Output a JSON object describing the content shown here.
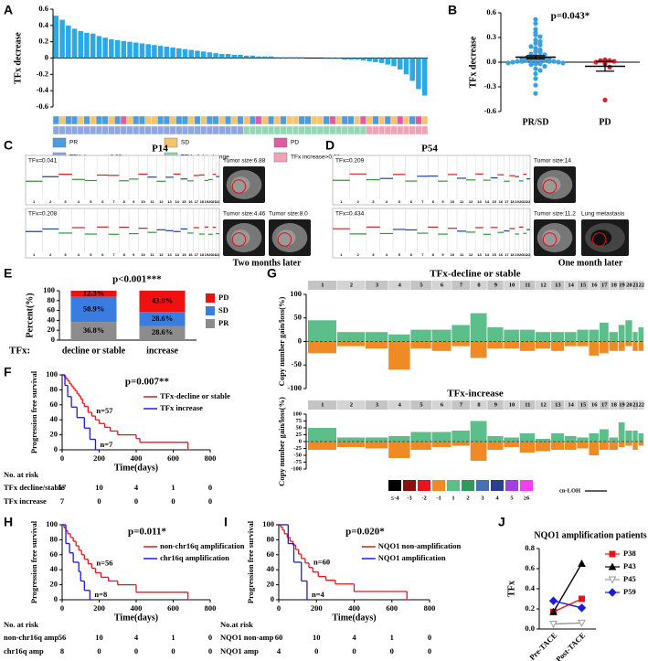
{
  "panel_labels": [
    "A",
    "B",
    "C",
    "D",
    "E",
    "F",
    "G",
    "H",
    "I",
    "J"
  ],
  "figure_panels": {
    "C": {
      "title": "P14",
      "tfx": [
        "TFx=0.041",
        "TFx=0.208"
      ],
      "tumor": [
        "Tumor size:6.88",
        "Tumor size:4.46",
        "Tumor size:8.0"
      ],
      "note": "Two months later"
    },
    "D": {
      "title": "P54",
      "tfx": [
        "TFx=0.209",
        "TFx=0.434"
      ],
      "tumor": [
        "Tumor size:14",
        "Tumor size:11.2"
      ],
      "lung": "Lung metastasis",
      "note": "One month later"
    }
  },
  "chart_data": [
    {
      "type": "waterfall",
      "ylabel": "TFx decrease",
      "ylim": [
        -0.6,
        0.6
      ],
      "yticks": [
        -0.6,
        -0.4,
        -0.2,
        0,
        0.2,
        0.4,
        0.6
      ],
      "color": "#29a9e6",
      "values": [
        0.52,
        0.47,
        0.4,
        0.36,
        0.33,
        0.31,
        0.3,
        0.27,
        0.25,
        0.23,
        0.22,
        0.21,
        0.2,
        0.19,
        0.18,
        0.17,
        0.16,
        0.15,
        0.14,
        0.13,
        0.12,
        0.11,
        0.1,
        0.09,
        0.08,
        0.07,
        0.06,
        0.05,
        0.05,
        0.04,
        0.04,
        0.03,
        0.03,
        0.02,
        0.02,
        0.02,
        0.01,
        0.01,
        0.01,
        0.01,
        0.01,
        0,
        0,
        0,
        -0.01,
        -0.01,
        -0.01,
        -0.02,
        -0.02,
        -0.02,
        -0.03,
        -0.04,
        -0.05,
        -0.06,
        -0.08,
        -0.1,
        -0.14,
        -0.2,
        -0.28,
        -0.38,
        -0.46
      ],
      "response": [
        "PR",
        "SD",
        "PR",
        "PR",
        "SD",
        "PR",
        "SD",
        "PR",
        "PR",
        "SD",
        "PR",
        "PD",
        "SD",
        "PR",
        "PR",
        "SD",
        "SD",
        "PR",
        "PR",
        "SD",
        "PR",
        "PR",
        "SD",
        "PR",
        "SD",
        "PR",
        "PR",
        "SD",
        "PR",
        "SD",
        "PR",
        "SD",
        "PR",
        "PD",
        "SD",
        "PR",
        "SD",
        "PR",
        "SD",
        "SD",
        "PR",
        "PR",
        "SD",
        "SD",
        "PR",
        "PD",
        "SD",
        "PR",
        "PR",
        "SD",
        "PD",
        "SD",
        "PR",
        "SD",
        "PR",
        "SD",
        "PD",
        "SD",
        "PR",
        "PD",
        "SD"
      ],
      "tfx_change": [
        "TFX decrease>0.03",
        "TFX decrease>0.03",
        "TFX decrease>0.03",
        "TFX decrease>0.03",
        "TFX decrease>0.03",
        "TFX decrease>0.03",
        "TFX decrease>0.03",
        "TFX decrease>0.03",
        "TFX decrease>0.03",
        "TFX decrease>0.03",
        "TFX decrease>0.03",
        "TFX decrease>0.03",
        "TFX decrease>0.03",
        "TFX decrease>0.03",
        "TFX decrease>0.03",
        "TFX decrease>0.03",
        "TFX decrease>0.03",
        "TFX decrease>0.03",
        "TFX decrease>0.03",
        "TFX decrease>0.03",
        "TFX decrease>0.03",
        "TFX decrease>0.03",
        "TFX decrease>0.03",
        "TFX decrease>0.03",
        "TFX decrease>0.03",
        "TFX decrease>0.03",
        "TFX decrease>0.03",
        "TFX decrease>0.03",
        "TFX decrease>0.03",
        "TFX decrease>0.03",
        "TFX decrease>0.03",
        "TFX slight-change",
        "TFX slight-change",
        "TFX slight-change",
        "TFX slight-change",
        "TFX slight-change",
        "TFX slight-change",
        "TFX slight-change",
        "TFX slight-change",
        "TFX slight-change",
        "TFX slight-change",
        "TFX slight-change",
        "TFX slight-change",
        "TFX slight-change",
        "TFX slight-change",
        "TFX slight-change",
        "TFX slight-change",
        "TFX slight-change",
        "TFX slight-change",
        "TFX slight-change",
        "TFX slight-change",
        "TFx increase>0.03",
        "TFx increase>0.03",
        "TFx increase>0.03",
        "TFx increase>0.03",
        "TFx increase>0.03",
        "TFx increase>0.03",
        "TFx increase>0.03",
        "TFx increase>0.03",
        "TFx increase>0.03",
        "TFx increase>0.03"
      ],
      "legend": [
        {
          "name": "PR",
          "color": "#4a9ee0"
        },
        {
          "name": "SD",
          "color": "#f6c46a"
        },
        {
          "name": "PD",
          "color": "#e25ca2"
        },
        {
          "name": "TFX decrease>0.03",
          "color": "#8fa6de"
        },
        {
          "name": "TFX slight-change",
          "color": "#94d7b3"
        },
        {
          "name": "TFx increase>0.03",
          "color": "#f2a2b6"
        }
      ]
    },
    {
      "type": "dot",
      "title": "p=0.043*",
      "ylabel": "TFx decrease",
      "ylim": [
        -0.6,
        0.6
      ],
      "yticks": [
        -0.6,
        -0.3,
        {
          "value": 0,
          "label": "0.0"
        },
        0.3,
        0.6
      ],
      "groups": [
        {
          "name": "PR/SD",
          "color": "#3aa0e0",
          "values": [
            0.52,
            0.47,
            0.4,
            0.36,
            0.33,
            0.31,
            0.27,
            0.25,
            0.23,
            0.21,
            0.19,
            0.17,
            0.15,
            0.13,
            0.12,
            0.1,
            0.09,
            0.08,
            0.07,
            0.06,
            0.05,
            0.05,
            0.04,
            0.04,
            0.03,
            0.03,
            0.02,
            0.02,
            0.02,
            0.01,
            0.01,
            0.01,
            0.01,
            0,
            0,
            -0.01,
            -0.01,
            -0.02,
            -0.02,
            -0.03,
            -0.05,
            -0.08,
            -0.1,
            -0.14,
            -0.2,
            -0.28,
            -0.38
          ],
          "mean": 0.06,
          "sem": 0.02
        },
        {
          "name": "PD",
          "color": "#e0202a",
          "values": [
            0.03,
            0.02,
            0.02,
            0.01,
            0,
            -0.02,
            -0.06,
            -0.46
          ],
          "mean": -0.05,
          "sem": 0.06
        }
      ]
    },
    {
      "type": "stacked_bar",
      "title": "p<0.001***",
      "ylabel": "Percent(%)",
      "xlabel": "TFx:",
      "categories": [
        "decline or stable",
        "increase"
      ],
      "ylim": [
        0,
        100
      ],
      "yticks": [
        0,
        20,
        40,
        60,
        80,
        100
      ],
      "series": [
        {
          "name": "PR",
          "color": "#8c8c8c",
          "values": [
            36.8,
            28.6
          ],
          "value_labels": [
            "36.8%",
            "28.6%"
          ]
        },
        {
          "name": "SD",
          "color": "#3a7de0",
          "values": [
            50.9,
            28.6
          ],
          "value_labels": [
            "50.9%",
            "28.6%"
          ]
        },
        {
          "name": "PD",
          "color": "#f01010",
          "values": [
            12.3,
            43.0
          ],
          "value_labels": [
            "12.3%",
            "43.0%"
          ]
        }
      ]
    },
    {
      "type": "km",
      "title": "p=0.007**",
      "ylabel": "Progression free survival",
      "xlabel": "Time(days)",
      "xlim": [
        0,
        800
      ],
      "xticks": [
        0,
        200,
        400,
        600,
        800
      ],
      "ylim": [
        0,
        100
      ],
      "yticks": [
        0,
        20,
        40,
        60,
        80,
        100
      ],
      "series": [
        {
          "name": "TFx-decline or stable",
          "color": "#e8141c",
          "label": "n=57",
          "x": [
            0,
            10,
            20,
            30,
            40,
            50,
            60,
            70,
            80,
            90,
            100,
            110,
            120,
            140,
            160,
            180,
            200,
            230,
            260,
            300,
            400,
            420,
            680
          ],
          "values": [
            100,
            98,
            95,
            92,
            88,
            85,
            82,
            79,
            75,
            72,
            68,
            62,
            58,
            50,
            45,
            40,
            35,
            30,
            25,
            20,
            15,
            10,
            0
          ]
        },
        {
          "name": "TFx increase",
          "color": "#1a1ae0",
          "label": "n=7",
          "x": [
            0,
            15,
            30,
            50,
            80,
            120,
            150,
            180
          ],
          "values": [
            100,
            86,
            71,
            57,
            43,
            29,
            14,
            0
          ]
        }
      ],
      "risk_table": {
        "title": "No. at risk",
        "rows": [
          {
            "name": "TFx decline/stable",
            "values": [
              57,
              10,
              4,
              1,
              0
            ]
          },
          {
            "name": "TFx increase",
            "values": [
              7,
              0,
              0,
              0,
              0
            ]
          }
        ]
      }
    },
    {
      "type": "cnv",
      "title": "TFx-decline or stable",
      "ylabel": "Copy number gain/loss(%)",
      "categories": [
        "1",
        "2",
        "3",
        "4",
        "5",
        "6",
        "7",
        "8",
        "9",
        "10",
        "11",
        "12",
        "13",
        "14",
        "15",
        "16",
        "17",
        "18",
        "19",
        "20",
        "21",
        "22"
      ],
      "ylim": [
        -100,
        100
      ],
      "yticks": [
        -100,
        -50,
        0,
        50,
        100
      ],
      "gain_color": "#5cbf8a",
      "loss_color": "#f08a24",
      "gain": [
        45,
        20,
        20,
        15,
        25,
        25,
        35,
        60,
        30,
        25,
        25,
        20,
        20,
        20,
        25,
        25,
        40,
        20,
        35,
        45,
        20,
        30
      ],
      "loss": [
        -25,
        -10,
        -15,
        -60,
        -15,
        -20,
        -10,
        -35,
        -15,
        -15,
        -20,
        -15,
        -20,
        -10,
        -10,
        -30,
        -25,
        -20,
        -20,
        -10,
        -20,
        -20
      ]
    },
    {
      "type": "cnv",
      "title": "TFx-increase",
      "ylabel": "Copy number gain/loss(%)",
      "categories": [
        "1",
        "2",
        "3",
        "4",
        "5",
        "6",
        "7",
        "8",
        "9",
        "10",
        "11",
        "12",
        "13",
        "14",
        "15",
        "16",
        "17",
        "18",
        "19",
        "20",
        "21",
        "22"
      ],
      "ylim": [
        -100,
        100
      ],
      "yticks": [
        -100,
        -75,
        -50,
        -25,
        0,
        25,
        50,
        75,
        100
      ],
      "gain_color": "#5cbf8a",
      "loss_color": "#f08a24",
      "gain": [
        50,
        15,
        15,
        20,
        35,
        35,
        40,
        75,
        20,
        15,
        30,
        10,
        30,
        20,
        15,
        30,
        45,
        15,
        70,
        40,
        40,
        30
      ],
      "loss": [
        -30,
        -20,
        -25,
        -60,
        -30,
        -20,
        -15,
        -70,
        -30,
        -20,
        -40,
        -35,
        -30,
        -30,
        -25,
        -50,
        -30,
        -30,
        -20,
        -15,
        -30,
        -15
      ],
      "legend": [
        {
          "label": "≤-4",
          "color": "#000000"
        },
        {
          "label": "-3",
          "color": "#8b1010"
        },
        {
          "label": "-2",
          "color": "#e8141c"
        },
        {
          "label": "-1",
          "color": "#f08a24"
        },
        {
          "label": "1",
          "color": "#5cbf8a"
        },
        {
          "label": "2",
          "color": "#2f9a5c"
        },
        {
          "label": "3",
          "color": "#4a6fb5"
        },
        {
          "label": "4",
          "color": "#2a3f8f"
        },
        {
          "label": "5",
          "color": "#a040e0"
        },
        {
          "label": "≥6",
          "color": "#f040f0"
        }
      ],
      "cnloh": "cn-LOH"
    },
    {
      "type": "km",
      "title": "p=0.011*",
      "ylabel": "Progression free survival",
      "xlabel": "Time(days)",
      "xlim": [
        0,
        800
      ],
      "xticks": [
        0,
        200,
        400,
        600,
        800
      ],
      "ylim": [
        0,
        100
      ],
      "yticks": [
        0,
        20,
        40,
        60,
        80,
        100
      ],
      "series": [
        {
          "name": "non-chr16q amplification",
          "color": "#e8141c",
          "label": "n=56",
          "x": [
            0,
            10,
            20,
            30,
            45,
            60,
            75,
            90,
            105,
            120,
            140,
            160,
            180,
            210,
            250,
            300,
            400,
            680
          ],
          "values": [
            100,
            96,
            92,
            88,
            83,
            78,
            72,
            66,
            60,
            54,
            48,
            42,
            36,
            30,
            25,
            20,
            10,
            0
          ]
        },
        {
          "name": "chr16q amplification",
          "color": "#1a1ae0",
          "label": "n=8",
          "x": [
            0,
            20,
            40,
            60,
            90,
            100,
            120,
            150
          ],
          "values": [
            100,
            75,
            62.5,
            50,
            37.5,
            25,
            12.5,
            0
          ]
        }
      ],
      "risk_table": {
        "title": "No. at risk",
        "rows": [
          {
            "name": "non-chr16q amp",
            "values": [
              56,
              10,
              4,
              1,
              0
            ]
          },
          {
            "name": "chr16q amp",
            "values": [
              8,
              0,
              0,
              0,
              0
            ]
          }
        ]
      }
    },
    {
      "type": "km",
      "title": "p=0.020*",
      "ylabel": "Progression free survival",
      "xlabel": "Time(days)",
      "xlim": [
        0,
        800
      ],
      "xticks": [
        0,
        200,
        400,
        600,
        800
      ],
      "ylim": [
        0,
        100
      ],
      "yticks": [
        0,
        20,
        40,
        60,
        80,
        100
      ],
      "series": [
        {
          "name": "NQO1 non-amplification",
          "color": "#e8141c",
          "label": "n=60",
          "x": [
            0,
            10,
            20,
            30,
            45,
            60,
            75,
            90,
            105,
            120,
            140,
            160,
            180,
            210,
            250,
            300,
            400,
            680
          ],
          "values": [
            100,
            97,
            93,
            88,
            83,
            78,
            73,
            67,
            61,
            55,
            49,
            43,
            37,
            31,
            26,
            21,
            11,
            0
          ]
        },
        {
          "name": "NQO1 amplification",
          "color": "#1a1ae0",
          "label": "n=4",
          "x": [
            0,
            50,
            80,
            120,
            150
          ],
          "values": [
            100,
            75,
            50,
            25,
            0
          ]
        }
      ],
      "risk_table": {
        "title": "No.at risk",
        "rows": [
          {
            "name": "NQO1 non-amp",
            "values": [
              60,
              10,
              4,
              1,
              0
            ]
          },
          {
            "name": "NQO1 amp",
            "values": [
              4,
              0,
              0,
              0,
              0
            ]
          }
        ]
      }
    },
    {
      "type": "line",
      "title": "NQO1 amplification patients",
      "ylabel": "TFx",
      "categories": [
        "Pre-TACE",
        "Post-TACE"
      ],
      "ylim": [
        0,
        0.8
      ],
      "yticks": [
        {
          "value": 0,
          "label": "0.0"
        },
        0.2,
        0.4,
        0.6,
        0.8
      ],
      "series": [
        {
          "name": "P38",
          "color": "#e8141c",
          "marker": "square",
          "values": [
            0.17,
            0.3
          ]
        },
        {
          "name": "P43",
          "color": "#000000",
          "marker": "triangle",
          "values": [
            0.17,
            0.65
          ]
        },
        {
          "name": "P45",
          "color": "#9a9a9a",
          "marker": "triangle-down",
          "values": [
            0.05,
            0.06
          ]
        },
        {
          "name": "P59",
          "color": "#1a1ae0",
          "marker": "diamond",
          "values": [
            0.28,
            0.21
          ]
        }
      ]
    }
  ]
}
